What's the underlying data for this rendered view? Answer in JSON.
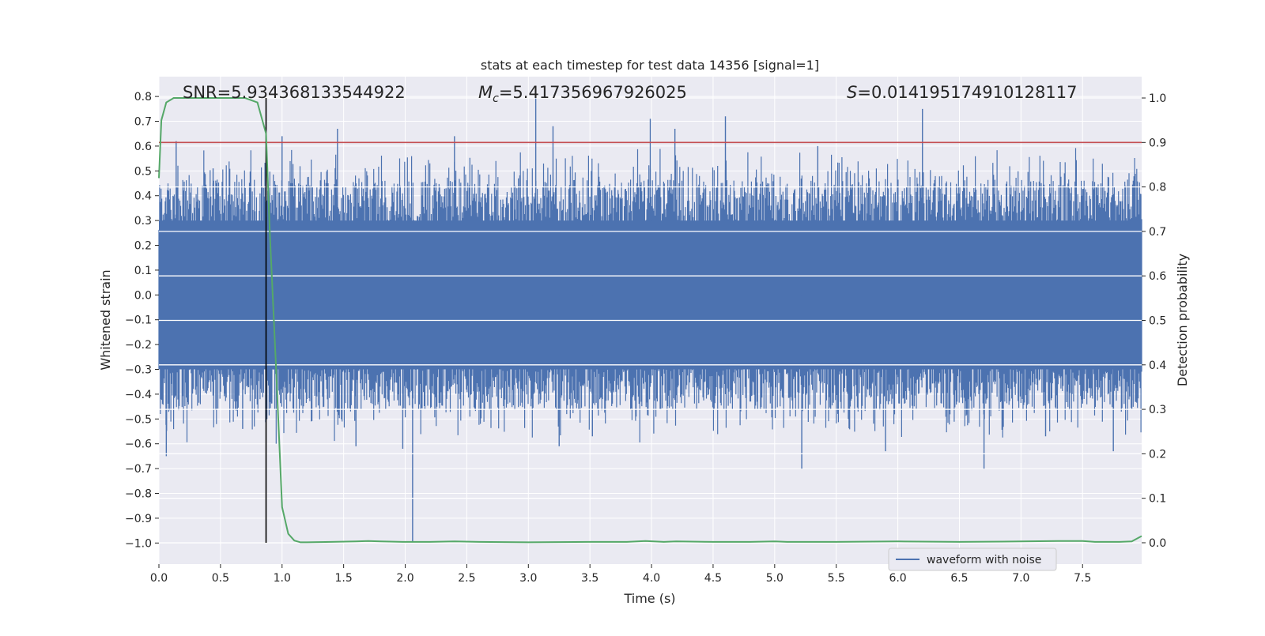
{
  "chart_data": {
    "type": "line",
    "title": "stats at each timestep for test data 14356 [signal=1]",
    "xlabel": "Time (s)",
    "ylabel_left": "Whitened strain",
    "ylabel_right": "Detection probability",
    "xlim": [
      0.0,
      7.98
    ],
    "ylim_left": [
      -1.085,
      0.88
    ],
    "ylim_right": [
      -0.048,
      1.048
    ],
    "grid": true,
    "x_ticks": [
      "0.0",
      "0.5",
      "1.0",
      "1.5",
      "2.0",
      "2.5",
      "3.0",
      "3.5",
      "4.0",
      "4.5",
      "5.0",
      "5.5",
      "6.0",
      "6.5",
      "7.0",
      "7.5"
    ],
    "y_left_ticks": [
      "0.8",
      "0.7",
      "0.6",
      "0.5",
      "0.4",
      "0.3",
      "0.2",
      "0.1",
      "0.0",
      "−0.1",
      "−0.2",
      "−0.3",
      "−0.4",
      "−0.5",
      "−0.6",
      "−0.7",
      "−0.8",
      "−0.9",
      "−1.0"
    ],
    "y_right_ticks": [
      "1.0",
      "0.9",
      "0.8",
      "0.7",
      "0.6",
      "0.5",
      "0.4",
      "0.3",
      "0.2",
      "0.1",
      "0.0"
    ],
    "annotations": {
      "snr": "SNR=5.934368133544922",
      "mc_symbol": "M",
      "mc_sub": "c",
      "mc_value": "=5.417356967926025",
      "s_symbol": "S",
      "s_value": "=0.014195174910128117"
    },
    "threshold_y_right": 0.9,
    "detection_time": 0.87,
    "legend": {
      "label": "waveform with noise",
      "placement": "lower-right"
    },
    "series": [
      {
        "name": "waveform with noise",
        "axis": "left",
        "color": "#4c72b0",
        "envelope_abs": 0.3,
        "spikes": [
          [
            0.06,
            -0.65
          ],
          [
            0.14,
            0.62
          ],
          [
            0.44,
            0.51
          ],
          [
            0.68,
            -0.54
          ],
          [
            1.0,
            0.64
          ],
          [
            1.45,
            0.67
          ],
          [
            1.6,
            -0.61
          ],
          [
            1.98,
            -0.62
          ],
          [
            2.06,
            -1.0
          ],
          [
            2.4,
            0.64
          ],
          [
            3.06,
            0.8
          ],
          [
            3.2,
            0.68
          ],
          [
            3.25,
            -0.61
          ],
          [
            3.52,
            -0.57
          ],
          [
            3.99,
            0.71
          ],
          [
            4.19,
            0.67
          ],
          [
            4.6,
            0.72
          ],
          [
            5.22,
            -0.7
          ],
          [
            5.35,
            0.6
          ],
          [
            5.9,
            -0.63
          ],
          [
            6.2,
            0.75
          ],
          [
            6.7,
            -0.7
          ],
          [
            7.2,
            -0.57
          ],
          [
            7.75,
            -0.63
          ]
        ]
      },
      {
        "name": "",
        "axis": "right",
        "color": "#55a868",
        "x": [
          0.0,
          0.02,
          0.06,
          0.12,
          0.2,
          0.3,
          0.4,
          0.5,
          0.6,
          0.7,
          0.8,
          0.87,
          0.9,
          0.95,
          1.0,
          1.05,
          1.1,
          1.15,
          1.2,
          1.4,
          1.6,
          1.7,
          1.8,
          2.0,
          2.2,
          2.4,
          2.6,
          3.0,
          3.5,
          3.8,
          3.95,
          4.1,
          4.2,
          4.5,
          4.8,
          5.0,
          5.1,
          5.5,
          6.0,
          6.5,
          7.0,
          7.3,
          7.5,
          7.6,
          7.8,
          7.9,
          7.98
        ],
        "y": [
          0.82,
          0.95,
          0.99,
          1.0,
          1.0,
          1.0,
          1.0,
          1.0,
          1.0,
          1.0,
          0.99,
          0.92,
          0.7,
          0.4,
          0.08,
          0.02,
          0.005,
          0.001,
          0.001,
          0.002,
          0.003,
          0.004,
          0.003,
          0.002,
          0.002,
          0.003,
          0.002,
          0.001,
          0.002,
          0.002,
          0.004,
          0.002,
          0.003,
          0.002,
          0.002,
          0.003,
          0.002,
          0.002,
          0.003,
          0.002,
          0.003,
          0.004,
          0.004,
          0.002,
          0.002,
          0.003,
          0.015
        ]
      }
    ]
  }
}
